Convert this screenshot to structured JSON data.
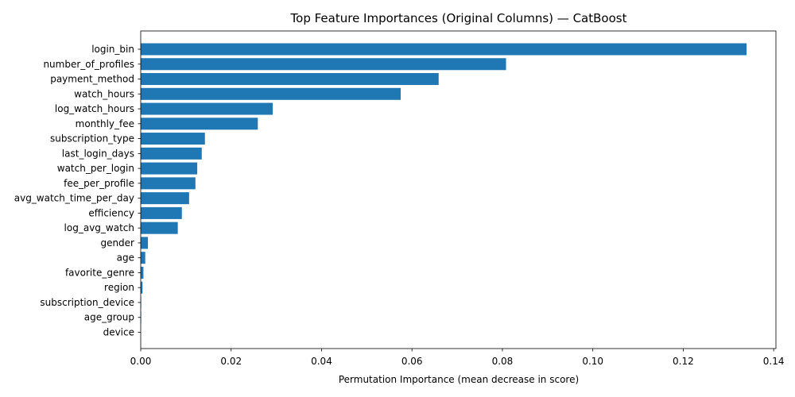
{
  "chart_data": {
    "type": "bar",
    "orientation": "horizontal",
    "title": "Top Feature Importances (Original Columns) — CatBoost",
    "xlabel": "Permutation Importance (mean decrease in score)",
    "ylabel": "",
    "xlim": [
      0,
      0.1405
    ],
    "xticks": [
      0.0,
      0.02,
      0.04,
      0.06,
      0.08,
      0.1,
      0.12,
      0.14
    ],
    "xtick_labels": [
      "0.00",
      "0.02",
      "0.04",
      "0.06",
      "0.08",
      "0.10",
      "0.12",
      "0.14"
    ],
    "bar_color": "#1f77b4",
    "grid": false,
    "categories": [
      "login_bin",
      "number_of_profiles",
      "payment_method",
      "watch_hours",
      "log_watch_hours",
      "monthly_fee",
      "subscription_type",
      "last_login_days",
      "watch_per_login",
      "fee_per_profile",
      "avg_watch_time_per_day",
      "efficiency",
      "log_avg_watch",
      "gender",
      "age",
      "favorite_genre",
      "region",
      "subscription_device",
      "age_group",
      "device"
    ],
    "values": [
      0.134,
      0.0808,
      0.0659,
      0.0575,
      0.0292,
      0.0259,
      0.0142,
      0.0135,
      0.0125,
      0.0121,
      0.0107,
      0.0091,
      0.0082,
      0.0016,
      0.001,
      0.0006,
      0.0004,
      0.0001,
      0.0001,
      0.0
    ]
  }
}
